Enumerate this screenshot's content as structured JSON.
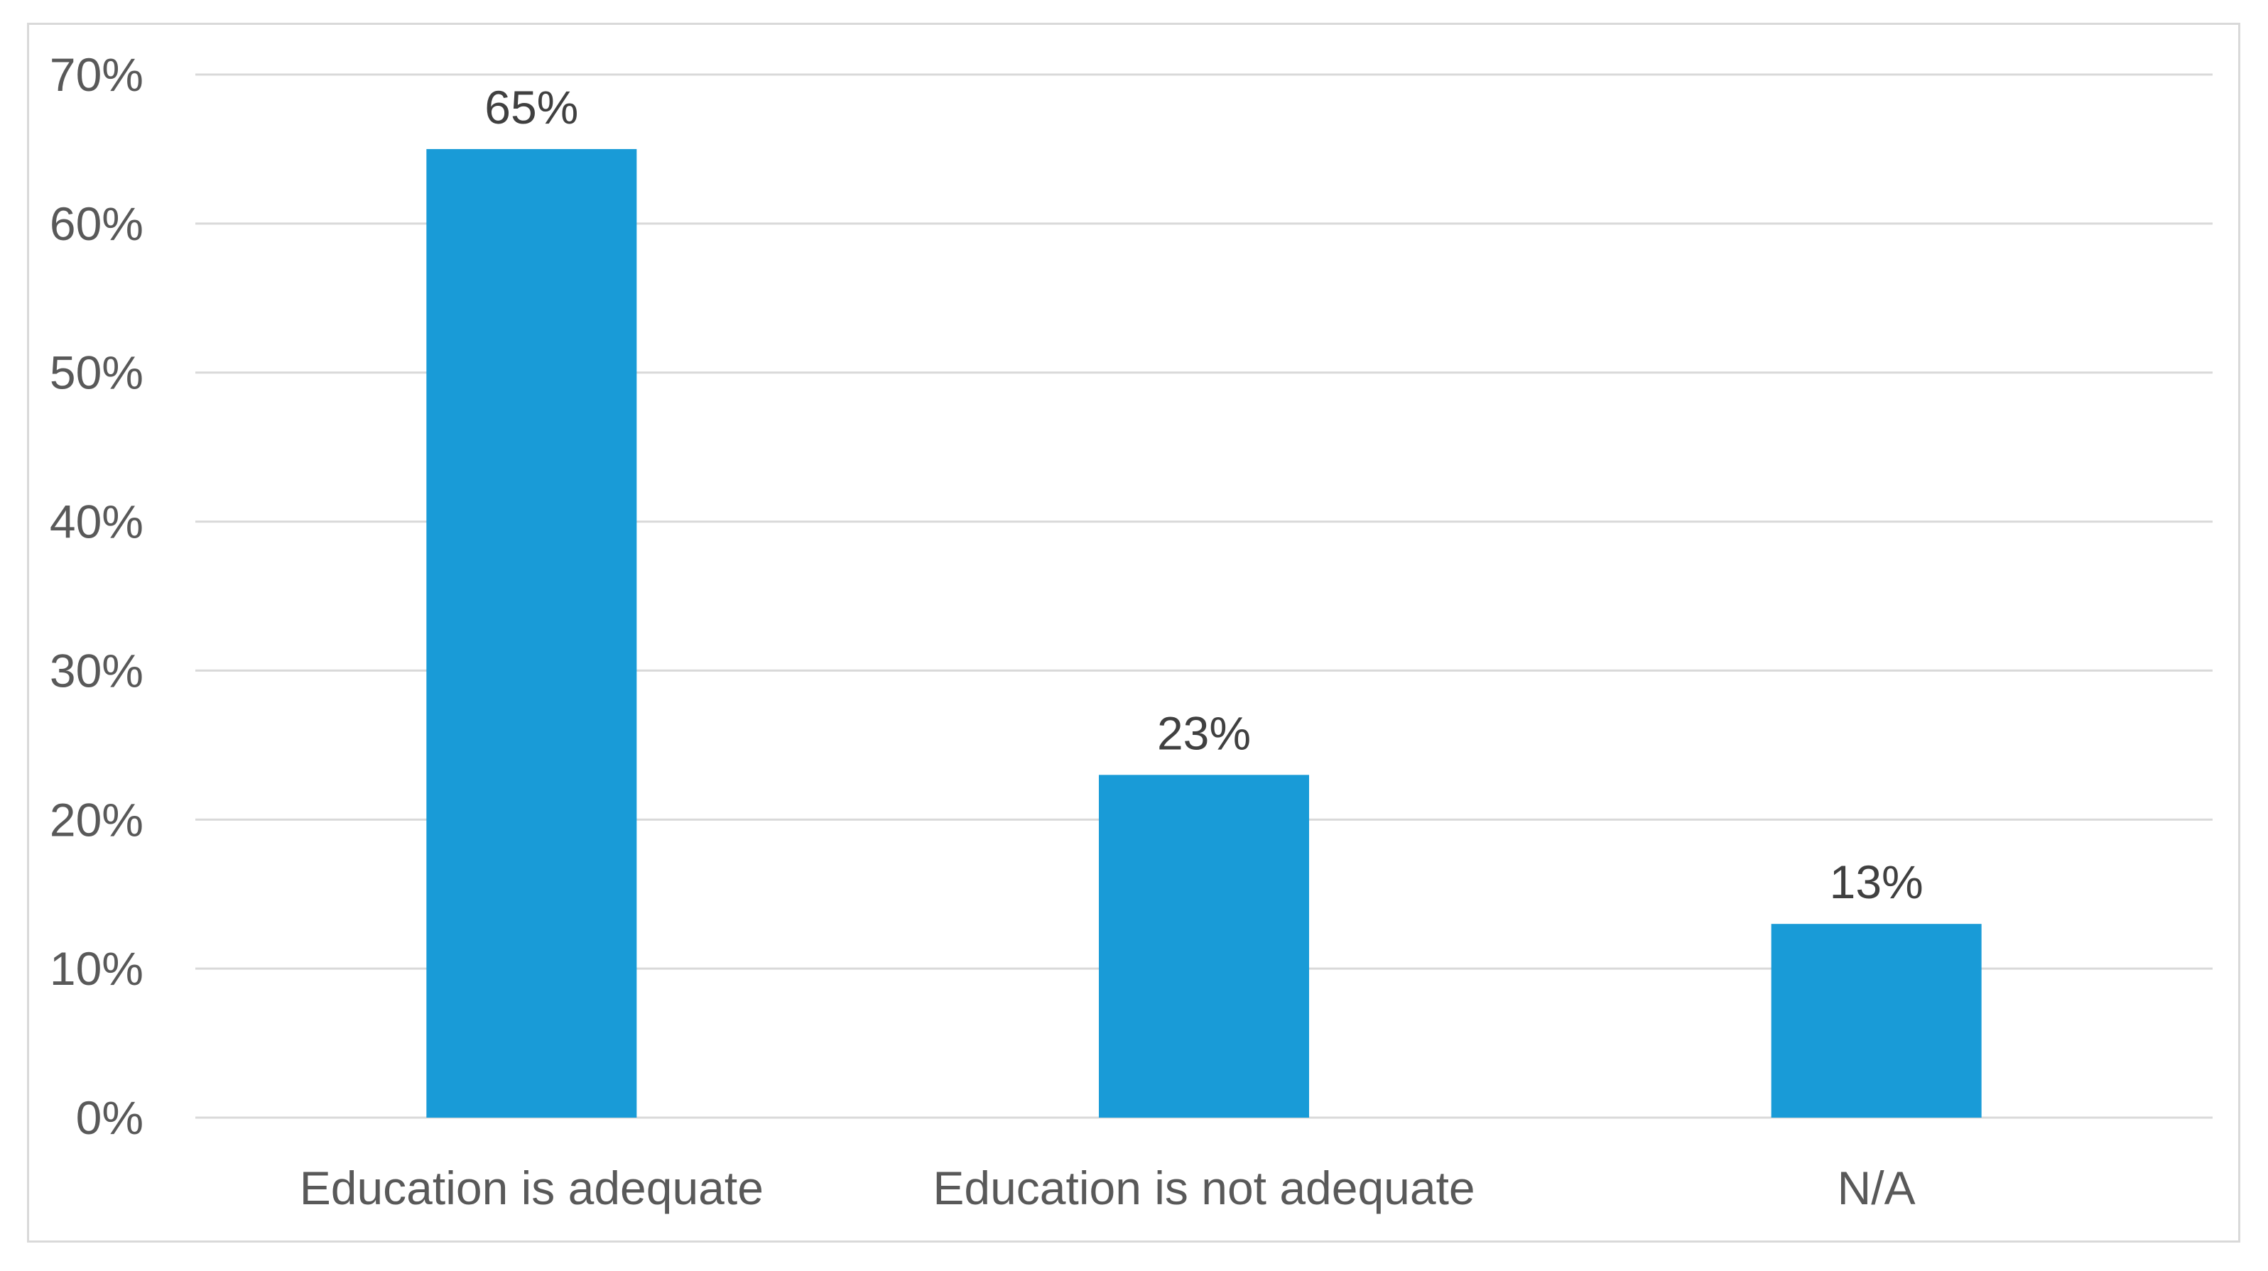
{
  "chart_data": {
    "type": "bar",
    "categories": [
      "Education is adequate",
      "Education is not adequate",
      "N/A"
    ],
    "values": [
      65,
      23,
      13
    ],
    "data_labels": [
      "65%",
      "23%",
      "13%"
    ],
    "yticks": [
      "0%",
      "10%",
      "20%",
      "30%",
      "40%",
      "50%",
      "60%",
      "70%"
    ],
    "ylim": [
      0,
      70
    ],
    "grid": true,
    "legend": "none",
    "title": "",
    "xlabel": "",
    "ylabel": "",
    "bar_color": "#199bd7"
  }
}
